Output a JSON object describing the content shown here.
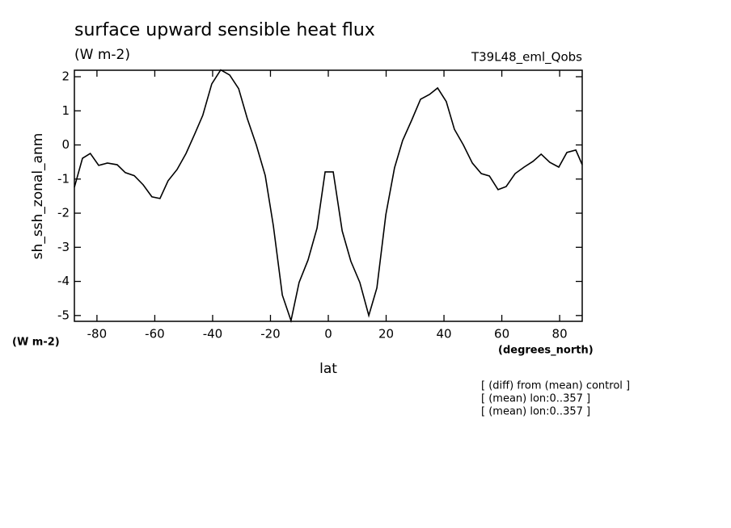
{
  "chart_data": {
    "type": "line",
    "title": "surface upward sensible heat flux",
    "subtitle": "(W m-2)",
    "annotation": "T39L48_eml_Qobs",
    "ylabel": "sh_ssh_zonal_anm",
    "y_units": "(W m-2)",
    "xlabel": "lat",
    "x_units": "(degrees_north)",
    "notes": [
      "[ (diff) from (mean) control ]",
      "[ (mean) lon:0..357 ]",
      "[ (mean) lon:0..357 ]"
    ],
    "color": "#000000",
    "x": [
      -87.8,
      -85,
      -82.3,
      -79.4,
      -76.4,
      -73,
      -70.2,
      -67.1,
      -64,
      -61,
      -58.2,
      -55.4,
      -52.3,
      -49.2,
      -46.2,
      -43.4,
      -40.3,
      -37.2,
      -34.1,
      -31,
      -28,
      -24.9,
      -21.8,
      -19,
      -15.9,
      -12.9,
      -10.1,
      -7,
      -3.9,
      -1.1,
      1.7,
      4.8,
      7.8,
      10.9,
      14,
      16.8,
      19.9,
      22.9,
      25.7,
      28.8,
      31.9,
      35,
      37.8,
      40.8,
      43.6,
      46.7,
      49.8,
      52.9,
      55.7,
      58.7,
      61.5,
      64.6,
      67.7,
      70.8,
      73.6,
      76.6,
      79.7,
      82.5,
      85.6,
      87.8
    ],
    "values": [
      -1.24,
      -0.39,
      -0.25,
      -0.6,
      -0.53,
      -0.58,
      -0.81,
      -0.9,
      -1.17,
      -1.52,
      -1.57,
      -1.05,
      -0.72,
      -0.25,
      0.32,
      0.87,
      1.79,
      2.2,
      2.05,
      1.65,
      0.77,
      0,
      -0.9,
      -2.37,
      -4.4,
      -5.15,
      -4.03,
      -3.37,
      -2.44,
      -0.79,
      -0.79,
      -2.52,
      -3.41,
      -4.03,
      -5.0,
      -4.19,
      -2.04,
      -0.67,
      0.13,
      0.72,
      1.34,
      1.48,
      1.67,
      1.27,
      0.46,
      0,
      -0.53,
      -0.84,
      -0.91,
      -1.31,
      -1.22,
      -0.84,
      -0.65,
      -0.48,
      -0.27,
      -0.51,
      -0.65,
      -0.22,
      -0.15,
      -0.58
    ],
    "xlim": [
      -87.8,
      87.8
    ],
    "ylim": [
      -5.17,
      2.19
    ],
    "xticks": [
      -80,
      -60,
      -40,
      -20,
      0,
      20,
      40,
      60,
      80
    ],
    "yticks": [
      -5,
      -4,
      -3,
      -2,
      -1,
      0,
      1,
      2
    ]
  }
}
